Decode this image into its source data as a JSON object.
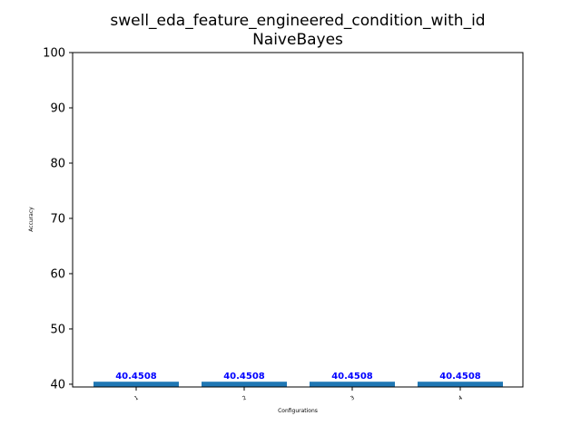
{
  "chart_data": {
    "type": "bar",
    "title": "swell_eda_feature_engineered_condition_with_id",
    "subtitle": "NaiveBayes",
    "xlabel": "Configurations",
    "ylabel": "Accuracy",
    "categories": [
      "1",
      "2",
      "3",
      "4"
    ],
    "values": [
      40.4508,
      40.4508,
      40.4508,
      40.4508
    ],
    "data_labels": [
      "40.4508",
      "40.4508",
      "40.4508",
      "40.4508"
    ],
    "ylim": [
      39.5,
      100
    ],
    "yticks": [
      40,
      50,
      60,
      70,
      80,
      90,
      100
    ],
    "grid": false,
    "colors": {
      "bar": "#1f77b4",
      "label": "#0000ff",
      "axis": "#000000"
    }
  }
}
